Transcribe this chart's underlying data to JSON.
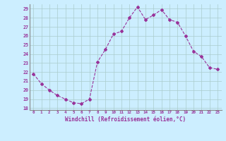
{
  "x": [
    0,
    1,
    2,
    3,
    4,
    5,
    6,
    7,
    8,
    9,
    10,
    11,
    12,
    13,
    14,
    15,
    16,
    17,
    18,
    19,
    20,
    21,
    22,
    23
  ],
  "y": [
    21.8,
    20.7,
    20.0,
    19.4,
    19.0,
    18.6,
    18.5,
    19.0,
    23.1,
    24.5,
    26.2,
    26.5,
    28.0,
    29.2,
    27.8,
    28.3,
    28.9,
    27.8,
    27.5,
    26.0,
    24.3,
    23.7,
    22.5,
    22.3
  ],
  "line_color": "#993399",
  "marker": "D",
  "marker_size": 2,
  "bg_color": "#cceeff",
  "grid_color": "#aacccc",
  "xlabel": "Windchill (Refroidissement éolien,°C)",
  "xlabel_color": "#993399",
  "tick_color": "#993399",
  "ylim_min": 17.8,
  "ylim_max": 29.5,
  "yticks": [
    18,
    19,
    20,
    21,
    22,
    23,
    24,
    25,
    26,
    27,
    28,
    29
  ],
  "xticks": [
    0,
    1,
    2,
    3,
    4,
    5,
    6,
    7,
    8,
    9,
    10,
    11,
    12,
    13,
    14,
    15,
    16,
    17,
    18,
    19,
    20,
    21,
    22,
    23
  ]
}
